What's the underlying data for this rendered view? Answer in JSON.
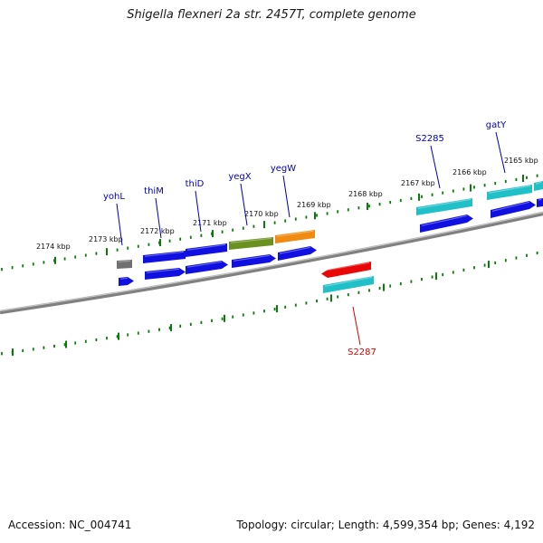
{
  "title": "Shigella flexneri 2a str. 2457T, complete genome",
  "footer": {
    "accession": "Accession: NC_004741",
    "summary": "Topology: circular; Length: 4,599,354 bp; Genes: 4,192"
  },
  "colors": {
    "backbone": "#8a8a8a",
    "tick": "#0a7a0a",
    "gene_blue": "#1010e0",
    "gene_teal": "#20c0c8",
    "gene_gray": "#707070",
    "gene_olive": "#6a9020",
    "gene_orange": "#f08a10",
    "gene_red": "#e80808",
    "label_blue": "#0000bb",
    "label_red": "#dd0000"
  },
  "tick_labels": [
    "2174 kbp",
    "2173 kbp",
    "2172 kbp",
    "2171 kbp",
    "2170 kbp",
    "2169 kbp",
    "2168 kbp",
    "2167 kbp",
    "2166 kbp",
    "2165 kbp"
  ],
  "gene_labels": [
    {
      "name": "yohL",
      "color": "label_blue"
    },
    {
      "name": "thiM",
      "color": "label_blue"
    },
    {
      "name": "thiD",
      "color": "label_blue"
    },
    {
      "name": "yegX",
      "color": "label_blue"
    },
    {
      "name": "yegW",
      "color": "label_blue"
    },
    {
      "name": "S2285",
      "color": "label_blue"
    },
    {
      "name": "gatY",
      "color": "label_blue"
    },
    {
      "name": "S2287",
      "color": "label_red"
    }
  ]
}
